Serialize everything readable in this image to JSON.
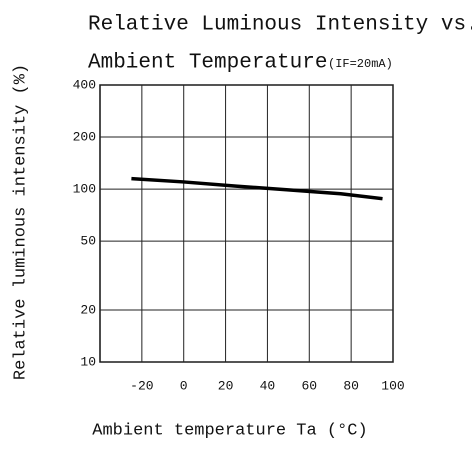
{
  "chart_data": {
    "type": "line",
    "title": [
      "Relative Luminous Intensity vs.",
      "Ambient Temperature"
    ],
    "annotation": "(IF=20mA)",
    "x_label": "Ambient temperature Ta (°C)",
    "y_label": "Relative luminous intensity (%)",
    "x": [
      -25,
      0,
      25,
      50,
      75,
      95
    ],
    "series": [
      {
        "color": "#000000",
        "values": [
          115,
          110,
          104,
          99,
          94,
          88
        ]
      }
    ],
    "xlim": [
      -40,
      100
    ],
    "xticks": [
      -20,
      0,
      20,
      40,
      60,
      80,
      100
    ],
    "ylim": [
      10,
      400
    ],
    "yticks": [
      10,
      20,
      50,
      100,
      200,
      400
    ],
    "y_log": true,
    "grid": true
  }
}
